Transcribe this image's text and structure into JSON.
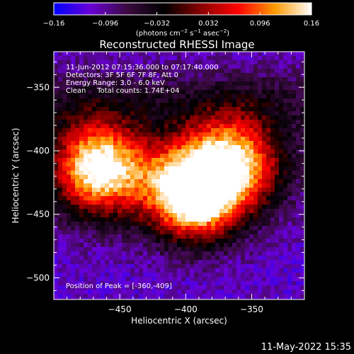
{
  "chart_data": {
    "type": "heatmap",
    "title": "Reconstructed RHESSI Image",
    "xlabel": "Heliocentric X (arcsec)",
    "ylabel": "Heliocentric Y (arcsec)",
    "xlim": [
      -500,
      -310
    ],
    "ylim": [
      -517,
      -322
    ],
    "x_ticks": [
      {
        "value": -450,
        "label": "−450"
      },
      {
        "value": -400,
        "label": "−400"
      },
      {
        "value": -350,
        "label": "−350"
      }
    ],
    "y_ticks": [
      {
        "value": -350,
        "label": "−350"
      },
      {
        "value": -400,
        "label": "−400"
      },
      {
        "value": -450,
        "label": "−450"
      },
      {
        "value": -500,
        "label": "−500"
      }
    ],
    "colorbar": {
      "min": -0.16,
      "max": 0.16,
      "ticks": [
        {
          "value": -0.16,
          "label": "−0.16"
        },
        {
          "value": -0.096,
          "label": "−0.096"
        },
        {
          "value": -0.032,
          "label": "−0.032"
        },
        {
          "value": 0.032,
          "label": "0.032"
        },
        {
          "value": 0.096,
          "label": "0.096"
        },
        {
          "value": 0.16,
          "label": "0.16"
        }
      ],
      "units_prefix": "(photons cm",
      "units_exp1": "−2",
      "units_mid": " s",
      "units_exp2": "−1",
      "units_suffix": " asec",
      "units_exp3": "−2",
      "units_end": ")"
    },
    "sources": [
      {
        "x": -468,
        "y": -412,
        "peak": 0.16
      },
      {
        "x": -367,
        "y": -409,
        "peak": 0.16
      },
      {
        "x": -395,
        "y": -440,
        "peak": 0.13
      }
    ],
    "background_level": -0.11,
    "peak_position": [
      -360,
      -409
    ],
    "colors": {
      "stops": [
        "#0000ff",
        "#6a00d6",
        "#3a0a40",
        "#000000",
        "#8a0000",
        "#ff0000",
        "#ff9a00",
        "#ffffff"
      ]
    }
  },
  "annotations": {
    "time_range": "11-Jun-2012 07:15:36.000 to 07:17:40.000",
    "detectors": "Detectors: 3F 5F 6F 7F 8F, Att 0",
    "energy": "Energy Range: 3.0 - 6.0 keV",
    "method": "Clean     Total counts: 1.74E+04",
    "peak_text": "Position of Peak = [-360,-409]"
  },
  "footer": {
    "timestamp": "11-May-2022 15:35"
  }
}
